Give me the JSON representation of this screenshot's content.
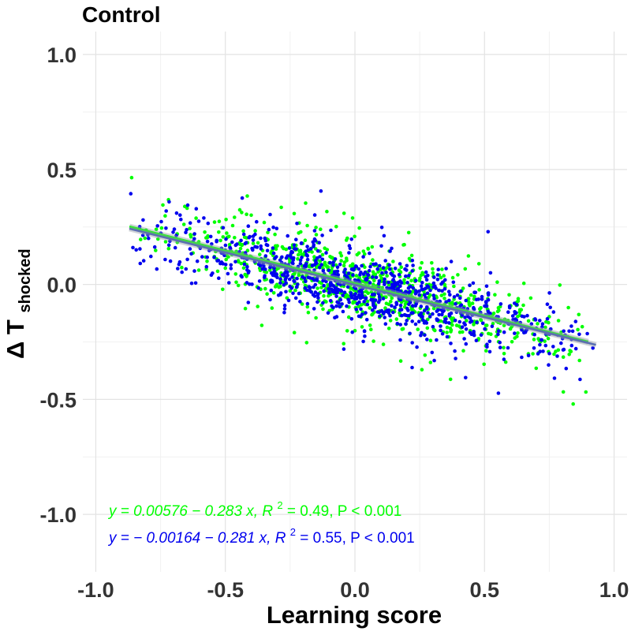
{
  "chart_data": {
    "type": "scatter",
    "title": "Control",
    "xlabel": "Learning score",
    "ylabel_main": "Δ T",
    "ylabel_subscript": "shocked",
    "xlim": [
      -1.05,
      1.05
    ],
    "ylim": [
      -1.25,
      1.1
    ],
    "x_ticks": [
      -1.0,
      -0.5,
      0.0,
      0.5,
      1.0
    ],
    "x_tick_labels": [
      "-1.0",
      "-0.5",
      "0.0",
      "0.5",
      "1.0"
    ],
    "y_ticks": [
      1.0,
      0.5,
      0.0,
      -0.5,
      -1.0
    ],
    "y_tick_labels": [
      "1.0",
      "0.5",
      "0.0",
      "-0.5",
      "-1.0"
    ],
    "grid": true,
    "series": [
      {
        "color": "#00ff00",
        "point_count": 900,
        "x_range": [
          -0.87,
          0.9
        ],
        "regression": {
          "intercept": 0.00576,
          "slope": -0.283,
          "r2": 0.49
        },
        "annotation": {
          "y_part": "y = 0.00576 − 0.283 x, R",
          "exp": "2",
          "rest": " = 0.49, P < 0.001"
        }
      },
      {
        "color": "#0000ee",
        "point_count": 900,
        "x_range": [
          -0.87,
          0.93
        ],
        "regression": {
          "intercept": -0.00164,
          "slope": -0.281,
          "r2": 0.55
        },
        "annotation": {
          "y_part": "y = − 0.00164 − 0.281 x, R",
          "exp": "2",
          "rest": " = 0.55, P < 0.001"
        }
      }
    ],
    "fit_line_color": "#5b6fb0",
    "fit_band_color": "#9aa0a6"
  }
}
